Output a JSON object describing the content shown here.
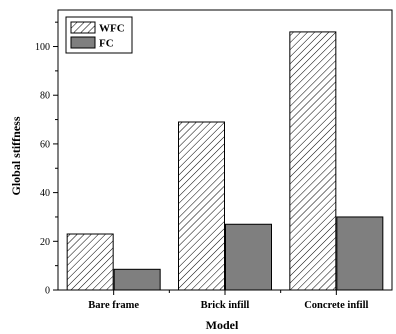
{
  "chart_data": {
    "type": "bar",
    "categories": [
      "Bare frame",
      "Brick infill",
      "Concrete infill"
    ],
    "series": [
      {
        "name": "WFC",
        "values": [
          23,
          69,
          106
        ],
        "pattern": "hatch",
        "color": "#ffffff"
      },
      {
        "name": "FC",
        "values": [
          8.5,
          27,
          30
        ],
        "pattern": "solid",
        "color": "#7f7f7f"
      }
    ],
    "xlabel": "Model",
    "ylabel": "Global stiffness",
    "ylim": [
      0,
      115
    ],
    "yticks": [
      0,
      20,
      40,
      60,
      80,
      100
    ],
    "grid": false,
    "legend_position": "top-left"
  }
}
